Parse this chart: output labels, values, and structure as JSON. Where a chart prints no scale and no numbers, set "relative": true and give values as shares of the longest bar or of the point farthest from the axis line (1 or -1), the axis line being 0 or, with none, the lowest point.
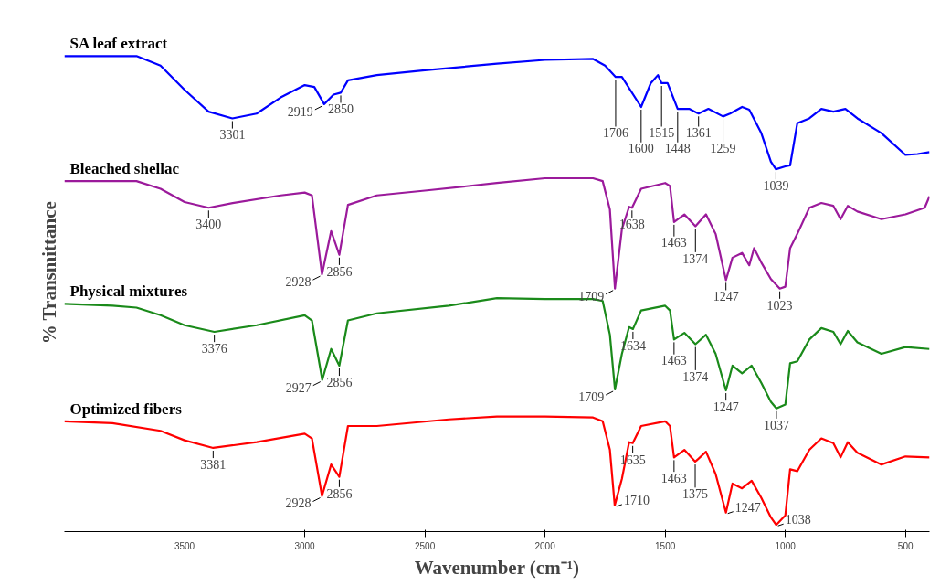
{
  "chart_data": {
    "type": "line",
    "relative": true,
    "xlabel": "Wavenumber (cm⁻¹)",
    "ylabel": "% Transmittance",
    "x": [
      4000,
      3700,
      3600,
      3500,
      3400,
      3301,
      3200,
      3100,
      3000,
      2960,
      2919,
      2880,
      2850,
      2820,
      2700,
      2500,
      2200,
      2000,
      1800,
      1750,
      1706,
      1680,
      1600,
      1560,
      1530,
      1515,
      1490,
      1448,
      1400,
      1361,
      1320,
      1259,
      1230,
      1180,
      1150,
      1100,
      1060,
      1039,
      1000,
      980,
      950,
      900,
      850,
      800,
      750,
      700,
      600,
      500,
      450,
      400
    ],
    "series": [
      {
        "name": "SA leaf extract",
        "color": "#0000ff",
        "values": [
          1.0,
          1.0,
          0.98,
          0.929,
          0.883,
          0.869,
          0.879,
          0.913,
          0.939,
          0.935,
          0.899,
          0.919,
          0.923,
          0.949,
          0.96,
          0.97,
          0.984,
          0.992,
          0.994,
          0.98,
          0.956,
          0.956,
          0.893,
          0.943,
          0.96,
          0.943,
          0.943,
          0.889,
          0.889,
          0.879,
          0.889,
          0.873,
          0.879,
          0.893,
          0.887,
          0.838,
          0.778,
          0.762,
          0.768,
          0.77,
          0.859,
          0.869,
          0.889,
          0.883,
          0.889,
          0.869,
          0.838,
          0.792,
          0.794,
          0.798
        ]
      },
      {
        "name": "Bleached shellac",
        "color": "#9b1a9b",
        "x": [
          4000,
          3700,
          3600,
          3500,
          3400,
          3300,
          3100,
          3000,
          2970,
          2928,
          2890,
          2856,
          2820,
          2700,
          2500,
          2200,
          2000,
          1800,
          1760,
          1730,
          1709,
          1680,
          1650,
          1638,
          1600,
          1500,
          1480,
          1463,
          1420,
          1374,
          1330,
          1290,
          1247,
          1220,
          1180,
          1150,
          1130,
          1100,
          1060,
          1023,
          1000,
          980,
          950,
          900,
          850,
          800,
          770,
          740,
          700,
          600,
          500,
          420,
          400
        ],
        "values": [
          0.737,
          0.737,
          0.721,
          0.693,
          0.681,
          0.691,
          0.707,
          0.713,
          0.707,
          0.541,
          0.632,
          0.582,
          0.687,
          0.707,
          0.717,
          0.733,
          0.743,
          0.743,
          0.737,
          0.677,
          0.511,
          0.636,
          0.683,
          0.681,
          0.721,
          0.733,
          0.727,
          0.651,
          0.667,
          0.642,
          0.667,
          0.626,
          0.529,
          0.576,
          0.586,
          0.56,
          0.596,
          0.566,
          0.531,
          0.511,
          0.515,
          0.596,
          0.626,
          0.681,
          0.691,
          0.685,
          0.657,
          0.685,
          0.673,
          0.657,
          0.667,
          0.681,
          0.705
        ]
      },
      {
        "name": "Physical mixtures",
        "color": "#1a8a1a",
        "x": [
          4000,
          3800,
          3700,
          3600,
          3500,
          3376,
          3200,
          3000,
          2970,
          2927,
          2890,
          2856,
          2820,
          2700,
          2400,
          2200,
          2000,
          1800,
          1760,
          1730,
          1709,
          1680,
          1650,
          1634,
          1600,
          1500,
          1480,
          1463,
          1420,
          1374,
          1330,
          1290,
          1247,
          1220,
          1180,
          1140,
          1100,
          1060,
          1037,
          1000,
          980,
          950,
          900,
          850,
          800,
          770,
          740,
          700,
          600,
          500,
          400
        ],
        "values": [
          0.479,
          0.475,
          0.471,
          0.455,
          0.434,
          0.42,
          0.434,
          0.455,
          0.444,
          0.319,
          0.384,
          0.349,
          0.444,
          0.459,
          0.475,
          0.491,
          0.489,
          0.489,
          0.485,
          0.414,
          0.299,
          0.374,
          0.43,
          0.426,
          0.465,
          0.475,
          0.465,
          0.404,
          0.418,
          0.394,
          0.414,
          0.374,
          0.297,
          0.349,
          0.333,
          0.349,
          0.313,
          0.273,
          0.259,
          0.267,
          0.354,
          0.358,
          0.404,
          0.428,
          0.42,
          0.394,
          0.422,
          0.398,
          0.374,
          0.388,
          0.384
        ]
      },
      {
        "name": "Optimized fibers",
        "color": "#ff0000",
        "x": [
          4000,
          3800,
          3600,
          3500,
          3381,
          3200,
          3000,
          2970,
          2928,
          2890,
          2856,
          2820,
          2700,
          2400,
          2200,
          2000,
          1800,
          1760,
          1730,
          1710,
          1680,
          1650,
          1635,
          1600,
          1500,
          1480,
          1463,
          1420,
          1375,
          1330,
          1290,
          1247,
          1220,
          1180,
          1140,
          1100,
          1060,
          1038,
          1000,
          980,
          950,
          900,
          850,
          800,
          770,
          740,
          700,
          600,
          500,
          400
        ],
        "values": [
          0.232,
          0.228,
          0.212,
          0.192,
          0.176,
          0.188,
          0.206,
          0.196,
          0.075,
          0.141,
          0.115,
          0.222,
          0.222,
          0.236,
          0.242,
          0.242,
          0.24,
          0.232,
          0.172,
          0.055,
          0.111,
          0.188,
          0.186,
          0.222,
          0.232,
          0.222,
          0.156,
          0.172,
          0.147,
          0.168,
          0.121,
          0.04,
          0.101,
          0.091,
          0.107,
          0.071,
          0.03,
          0.014,
          0.034,
          0.131,
          0.127,
          0.172,
          0.196,
          0.186,
          0.156,
          0.188,
          0.166,
          0.141,
          0.158,
          0.156
        ]
      }
    ],
    "xlim": [
      4000,
      400
    ],
    "xticks": [
      3500,
      3000,
      2500,
      2000,
      1500,
      1000,
      500
    ],
    "grid": false,
    "legend": false,
    "marker": "none",
    "line_style": "solid",
    "annotations": [
      {
        "text": "3301",
        "x": 3301,
        "y": 0.869
      },
      {
        "text": "2919",
        "x": 2919,
        "y": 0.899
      },
      {
        "text": "2850",
        "x": 2850,
        "y": 0.923
      },
      {
        "text": "1706",
        "x": 1706,
        "y": 0.956
      },
      {
        "text": "1600",
        "x": 1600,
        "y": 0.893
      },
      {
        "text": "1515",
        "x": 1515,
        "y": 0.943
      },
      {
        "text": "1448",
        "x": 1448,
        "y": 0.889
      },
      {
        "text": "1361",
        "x": 1361,
        "y": 0.879
      },
      {
        "text": "1259",
        "x": 1259,
        "y": 0.873
      },
      {
        "text": "1039",
        "x": 1039,
        "y": 0.762
      },
      {
        "text": "3400",
        "x": 3400,
        "y": 0.681
      },
      {
        "text": "2928",
        "x": 2928,
        "y": 0.541
      },
      {
        "text": "2856",
        "x": 2856,
        "y": 0.582
      },
      {
        "text": "1709",
        "x": 1709,
        "y": 0.511
      },
      {
        "text": "1638",
        "x": 1638,
        "y": 0.681
      },
      {
        "text": "1463",
        "x": 1463,
        "y": 0.651
      },
      {
        "text": "1374",
        "x": 1374,
        "y": 0.642
      },
      {
        "text": "1247",
        "x": 1247,
        "y": 0.529
      },
      {
        "text": "1023",
        "x": 1023,
        "y": 0.511
      },
      {
        "text": "3376",
        "x": 3376,
        "y": 0.42
      },
      {
        "text": "2927",
        "x": 2927,
        "y": 0.319
      },
      {
        "text": "2856",
        "x": 2856,
        "y": 0.349
      },
      {
        "text": "1709",
        "x": 1709,
        "y": 0.299
      },
      {
        "text": "1634",
        "x": 1634,
        "y": 0.426
      },
      {
        "text": "1463",
        "x": 1463,
        "y": 0.404
      },
      {
        "text": "1374",
        "x": 1374,
        "y": 0.394
      },
      {
        "text": "1247",
        "x": 1247,
        "y": 0.297
      },
      {
        "text": "1037",
        "x": 1037,
        "y": 0.259
      },
      {
        "text": "3381",
        "x": 3381,
        "y": 0.176
      },
      {
        "text": "2928",
        "x": 2928,
        "y": 0.075
      },
      {
        "text": "2856",
        "x": 2856,
        "y": 0.115
      },
      {
        "text": "1710",
        "x": 1710,
        "y": 0.055
      },
      {
        "text": "1635",
        "x": 1635,
        "y": 0.186
      },
      {
        "text": "1463",
        "x": 1463,
        "y": 0.156
      },
      {
        "text": "1375",
        "x": 1375,
        "y": 0.147
      },
      {
        "text": "1247",
        "x": 1247,
        "y": 0.04
      },
      {
        "text": "1038",
        "x": 1038,
        "y": 0.014
      }
    ]
  }
}
